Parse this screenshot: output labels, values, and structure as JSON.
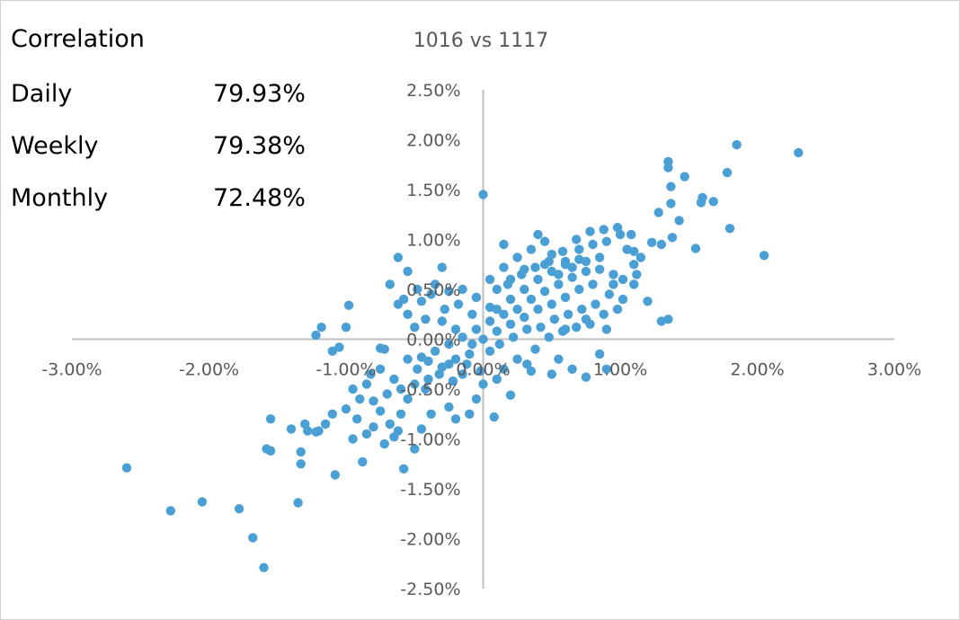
{
  "correlation": {
    "heading": "Correlation",
    "rows": [
      {
        "label": "Daily",
        "value": "79.93%"
      },
      {
        "label": "Weekly",
        "value": "79.38%"
      },
      {
        "label": "Monthly",
        "value": "72.48%"
      }
    ]
  },
  "chart_data": {
    "type": "scatter",
    "title": "1016 vs 1117",
    "xlabel": "",
    "ylabel": "",
    "xlim": [
      -3.0,
      3.0
    ],
    "ylim": [
      -2.5,
      2.5
    ],
    "x_ticks": [
      "-3.00%",
      "-2.00%",
      "-1.00%",
      "0.00%",
      "1.00%",
      "2.00%",
      "3.00%"
    ],
    "y_ticks": [
      "2.50%",
      "2.00%",
      "1.50%",
      "1.00%",
      "0.50%",
      "0.00%",
      "-0.50%",
      "-1.00%",
      "-1.50%",
      "-2.00%",
      "-2.50%"
    ],
    "grid": false,
    "legend": "none",
    "color": "#4A9FD5",
    "series": [
      {
        "points": [
          [
            1.85,
            1.95
          ],
          [
            2.3,
            1.87
          ],
          [
            1.35,
            1.78
          ],
          [
            1.35,
            1.72
          ],
          [
            1.47,
            1.63
          ],
          [
            1.78,
            1.67
          ],
          [
            1.37,
            1.53
          ],
          [
            1.6,
            1.42
          ],
          [
            1.68,
            1.38
          ],
          [
            1.59,
            1.37
          ],
          [
            1.37,
            1.36
          ],
          [
            1.28,
            1.27
          ],
          [
            1.43,
            1.19
          ],
          [
            1.8,
            1.11
          ],
          [
            2.05,
            0.84
          ],
          [
            1.55,
            0.91
          ],
          [
            1.23,
            0.97
          ],
          [
            1.38,
            1.02
          ],
          [
            1.3,
            0.95
          ],
          [
            1.1,
            0.88
          ],
          [
            0.0,
            1.45
          ],
          [
            -0.62,
            0.82
          ],
          [
            -0.55,
            0.68
          ],
          [
            -0.3,
            0.72
          ],
          [
            -0.98,
            0.34
          ],
          [
            -1.0,
            0.12
          ],
          [
            -1.18,
            0.12
          ],
          [
            -1.05,
            -0.08
          ],
          [
            -1.1,
            -0.12
          ],
          [
            -1.22,
            0.04
          ],
          [
            -0.75,
            -0.09
          ],
          [
            1.3,
            0.18
          ],
          [
            0.75,
            -0.38
          ],
          [
            1.02,
            0.4
          ],
          [
            0.95,
            0.55
          ],
          [
            1.1,
            0.75
          ],
          [
            1.0,
            1.05
          ],
          [
            0.3,
            0.7
          ],
          [
            0.15,
            0.95
          ],
          [
            0.05,
            0.32
          ],
          [
            0.45,
            0.98
          ],
          [
            0.4,
            1.05
          ],
          [
            -2.6,
            -1.29
          ],
          [
            -2.28,
            -1.72
          ],
          [
            -2.05,
            -1.63
          ],
          [
            -1.78,
            -1.7
          ],
          [
            -1.68,
            -1.99
          ],
          [
            -1.6,
            -2.29
          ],
          [
            -1.35,
            -1.64
          ],
          [
            -1.33,
            -1.25
          ],
          [
            -1.33,
            -1.13
          ],
          [
            -1.2,
            -0.92
          ],
          [
            -1.28,
            -0.92
          ],
          [
            -1.22,
            -0.93
          ],
          [
            -1.58,
            -1.1
          ],
          [
            -1.55,
            -1.12
          ],
          [
            -1.55,
            -0.8
          ],
          [
            -1.08,
            -1.36
          ],
          [
            -0.88,
            -1.23
          ],
          [
            -0.58,
            -1.3
          ],
          [
            -0.5,
            -1.1
          ],
          [
            -0.92,
            -0.8
          ],
          [
            -0.8,
            -0.88
          ],
          [
            -0.75,
            -0.72
          ],
          [
            -0.68,
            -0.85
          ],
          [
            -0.65,
            -0.98
          ],
          [
            -0.55,
            -0.6
          ],
          [
            -0.42,
            -0.5
          ],
          [
            -0.38,
            -0.75
          ],
          [
            -0.2,
            -0.8
          ],
          [
            -0.05,
            -0.6
          ],
          [
            -1.15,
            -0.85
          ],
          [
            -0.95,
            -1.0
          ],
          [
            -0.85,
            -0.95
          ],
          [
            -0.72,
            -1.05
          ],
          [
            -0.62,
            -0.92
          ],
          [
            -0.45,
            -0.9
          ],
          [
            -0.6,
            -0.75
          ],
          [
            -0.25,
            -0.68
          ],
          [
            -0.1,
            -0.75
          ],
          [
            0.08,
            -0.78
          ],
          [
            0.2,
            -0.56
          ],
          [
            0.35,
            -0.32
          ],
          [
            0.5,
            -0.35
          ],
          [
            0.65,
            -0.3
          ],
          [
            0.85,
            -0.15
          ],
          [
            0.9,
            -0.3
          ],
          [
            0.55,
            -0.2
          ],
          [
            0.32,
            -0.25
          ],
          [
            0.15,
            -0.3
          ],
          [
            0.6,
            0.1
          ],
          [
            0.75,
            0.2
          ],
          [
            0.9,
            0.1
          ],
          [
            1.2,
            0.38
          ],
          [
            1.35,
            0.2
          ],
          [
            1.1,
            0.55
          ],
          [
            0.85,
            0.82
          ],
          [
            0.7,
            0.9
          ],
          [
            0.6,
            0.78
          ],
          [
            0.5,
            0.85
          ],
          [
            0.2,
            0.6
          ],
          [
            0.1,
            0.5
          ],
          [
            -0.55,
            0.25
          ],
          [
            -0.45,
            0.38
          ],
          [
            -0.35,
            0.55
          ],
          [
            -0.25,
            0.48
          ],
          [
            -0.15,
            0.5
          ],
          [
            -0.05,
            0.42
          ],
          [
            -0.5,
            0.12
          ],
          [
            -0.42,
            0.2
          ],
          [
            -0.3,
            0.18
          ],
          [
            -0.2,
            0.1
          ],
          [
            -0.55,
            -0.2
          ],
          [
            -0.48,
            -0.3
          ],
          [
            -0.4,
            -0.22
          ],
          [
            -0.32,
            -0.35
          ],
          [
            -0.22,
            -0.42
          ],
          [
            -0.12,
            -0.25
          ],
          [
            -0.02,
            -0.32
          ],
          [
            0.05,
            -0.12
          ],
          [
            -0.08,
            -0.05
          ],
          [
            0.0,
            0.0
          ],
          [
            0.1,
            0.08
          ],
          [
            0.2,
            0.15
          ],
          [
            0.3,
            0.22
          ],
          [
            0.4,
            0.3
          ],
          [
            0.5,
            0.35
          ],
          [
            0.6,
            0.42
          ],
          [
            0.7,
            0.5
          ],
          [
            0.8,
            0.55
          ],
          [
            0.25,
            0.3
          ],
          [
            0.35,
            0.4
          ],
          [
            0.45,
            0.48
          ],
          [
            0.55,
            0.55
          ],
          [
            0.65,
            0.62
          ],
          [
            0.75,
            0.68
          ],
          [
            0.15,
            0.25
          ],
          [
            0.05,
            0.18
          ],
          [
            -0.05,
            0.1
          ],
          [
            -0.15,
            0.02
          ],
          [
            -0.25,
            -0.05
          ],
          [
            -0.35,
            -0.12
          ],
          [
            -0.45,
            -0.18
          ],
          [
            0.12,
            -0.05
          ],
          [
            0.22,
            0.02
          ],
          [
            0.32,
            0.1
          ],
          [
            0.42,
            0.12
          ],
          [
            0.52,
            0.2
          ],
          [
            0.62,
            0.25
          ],
          [
            0.72,
            0.3
          ],
          [
            0.82,
            0.35
          ],
          [
            0.92,
            0.45
          ],
          [
            1.02,
            0.6
          ],
          [
            1.12,
            0.65
          ],
          [
            0.3,
            0.5
          ],
          [
            0.4,
            0.6
          ],
          [
            0.5,
            0.68
          ],
          [
            0.6,
            0.75
          ],
          [
            0.7,
            0.8
          ],
          [
            0.8,
            0.95
          ],
          [
            0.9,
            0.98
          ],
          [
            1.05,
            0.9
          ],
          [
            1.15,
            0.82
          ],
          [
            0.2,
            0.4
          ],
          [
            0.1,
            0.3
          ],
          [
            -0.1,
            -0.15
          ],
          [
            -0.2,
            -0.2
          ],
          [
            -0.3,
            -0.28
          ],
          [
            -0.4,
            -0.4
          ],
          [
            -0.5,
            -0.45
          ],
          [
            -0.6,
            -0.5
          ],
          [
            -0.7,
            -0.55
          ],
          [
            -0.8,
            -0.62
          ],
          [
            -0.25,
            -0.25
          ],
          [
            -0.15,
            -0.35
          ],
          [
            0.0,
            -0.45
          ],
          [
            0.1,
            -0.4
          ],
          [
            0.25,
            -0.2
          ],
          [
            0.38,
            -0.1
          ],
          [
            0.48,
            0.02
          ],
          [
            0.58,
            0.08
          ],
          [
            0.68,
            0.12
          ],
          [
            0.78,
            0.15
          ],
          [
            0.88,
            0.25
          ],
          [
            0.98,
            0.3
          ],
          [
            0.18,
            0.55
          ],
          [
            0.28,
            0.65
          ],
          [
            0.38,
            0.72
          ],
          [
            0.48,
            0.78
          ],
          [
            0.58,
            0.88
          ],
          [
            0.68,
            1.0
          ],
          [
            0.78,
            1.08
          ],
          [
            0.88,
            1.1
          ],
          [
            0.98,
            1.12
          ],
          [
            1.08,
            1.05
          ],
          [
            -0.08,
            0.25
          ],
          [
            -0.18,
            0.35
          ],
          [
            -0.28,
            0.3
          ],
          [
            -0.38,
            0.45
          ],
          [
            -0.48,
            0.5
          ],
          [
            -0.58,
            0.4
          ],
          [
            -0.68,
            0.55
          ],
          [
            -0.62,
            0.35
          ],
          [
            -0.72,
            -0.1
          ],
          [
            -0.82,
            -0.35
          ],
          [
            0.05,
            0.6
          ],
          [
            0.15,
            0.72
          ],
          [
            0.25,
            0.82
          ],
          [
            0.35,
            0.9
          ],
          [
            0.45,
            0.75
          ],
          [
            0.55,
            0.65
          ],
          [
            0.65,
            0.72
          ],
          [
            0.75,
            0.78
          ],
          [
            0.85,
            0.7
          ],
          [
            0.95,
            0.65
          ],
          [
            -0.9,
            -0.6
          ],
          [
            -1.0,
            -0.7
          ],
          [
            -1.1,
            -0.75
          ],
          [
            -1.3,
            -0.85
          ],
          [
            -1.4,
            -0.9
          ],
          [
            -0.65,
            -0.4
          ],
          [
            -0.75,
            -0.3
          ],
          [
            -0.85,
            -0.45
          ],
          [
            -0.95,
            -0.5
          ]
        ]
      }
    ]
  }
}
